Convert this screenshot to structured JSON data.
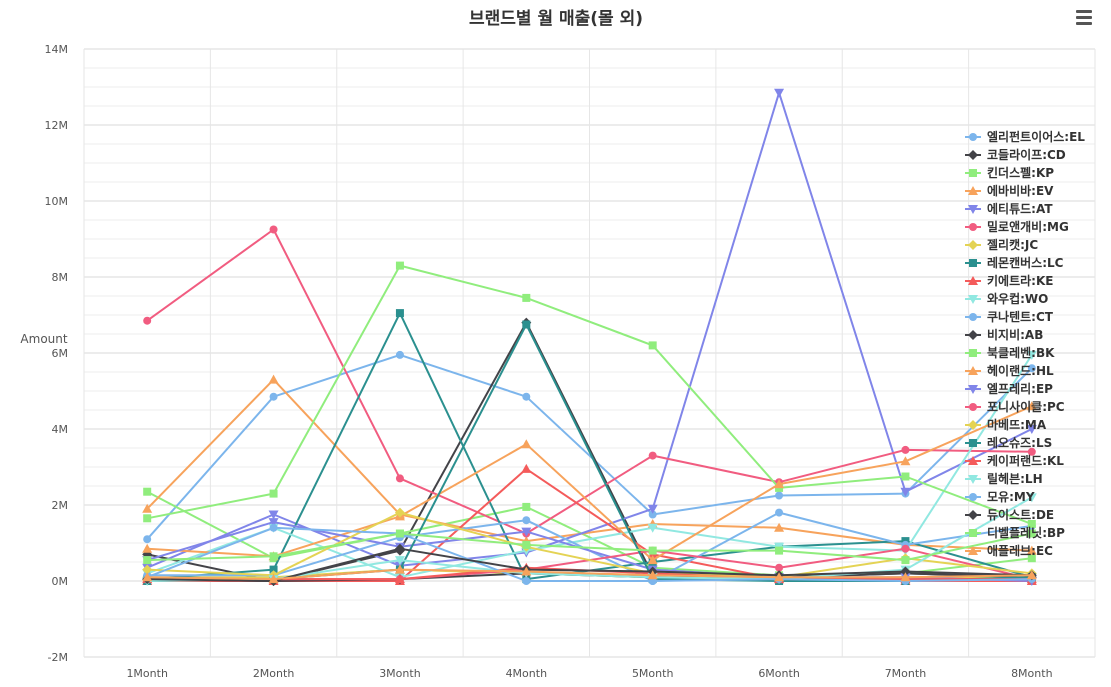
{
  "chart_data": {
    "type": "line",
    "title": "브랜드별 월 매출(몰 외)",
    "xlabel": "",
    "ylabel": "Amount",
    "categories": [
      "1Month",
      "2Month",
      "3Month",
      "4Month",
      "5Month",
      "6Month",
      "7Month",
      "8Month"
    ],
    "ylim": [
      -2000000,
      14000000
    ],
    "yticks": [
      -2000000,
      0,
      2000000,
      4000000,
      6000000,
      8000000,
      10000000,
      12000000,
      14000000
    ],
    "ytick_labels": [
      "-2M",
      "0M",
      "2M",
      "4M",
      "6M",
      "8M",
      "10M",
      "12M",
      "14M"
    ],
    "grid": true,
    "legend_position": "right",
    "series": [
      {
        "name": "엘리펀트이어스:EL",
        "color": "#7cb5ec",
        "marker": "circle",
        "values": [
          1100000,
          4850000,
          5950000,
          4850000,
          1750000,
          2250000,
          2300000,
          5600000
        ]
      },
      {
        "name": "코들라이프:CD",
        "color": "#434348",
        "marker": "diamond",
        "values": [
          700000,
          0,
          800000,
          6800000,
          150000,
          100000,
          200000,
          100000
        ]
      },
      {
        "name": "킨더스펠:KP",
        "color": "#90ed7d",
        "marker": "square",
        "values": [
          2350000,
          600000,
          1250000,
          1950000,
          350000,
          150000,
          200000,
          600000
        ]
      },
      {
        "name": "에바비바:EV",
        "color": "#f7a35c",
        "marker": "triangle",
        "values": [
          1900000,
          5300000,
          1750000,
          1050000,
          1500000,
          1400000,
          950000,
          800000
        ]
      },
      {
        "name": "에티튜드:AT",
        "color": "#8085e9",
        "marker": "triangle-down",
        "values": [
          350000,
          1750000,
          400000,
          750000,
          1900000,
          12850000,
          2350000,
          4000000
        ]
      },
      {
        "name": "밀로앤개비:MG",
        "color": "#f15c80",
        "marker": "circle",
        "values": [
          6850000,
          9250000,
          2700000,
          1250000,
          3300000,
          2600000,
          3450000,
          3400000
        ]
      },
      {
        "name": "젤리캣:JC",
        "color": "#e4d354",
        "marker": "diamond",
        "values": [
          100000,
          100000,
          300000,
          200000,
          100000,
          50000,
          100000,
          100000
        ]
      },
      {
        "name": "레몬캔버스:LC",
        "color": "#2b908f",
        "marker": "square",
        "values": [
          50000,
          300000,
          7050000,
          50000,
          500000,
          900000,
          1050000,
          100000
        ]
      },
      {
        "name": "키에트라:KE",
        "color": "#f45b5b",
        "marker": "triangle",
        "values": [
          0,
          0,
          0,
          2950000,
          700000,
          50000,
          0,
          0
        ]
      },
      {
        "name": "와우컵:WO",
        "color": "#91e8e1",
        "marker": "triangle-down",
        "values": [
          200000,
          1400000,
          100000,
          800000,
          1400000,
          900000,
          800000,
          5950000
        ]
      },
      {
        "name": "쿠나텐트:CT",
        "color": "#7cb5ec",
        "marker": "circle",
        "values": [
          150000,
          150000,
          1150000,
          1600000,
          0,
          1800000,
          950000,
          1450000
        ]
      },
      {
        "name": "비지비:AB",
        "color": "#434348",
        "marker": "diamond",
        "values": [
          50000,
          0,
          50000,
          200000,
          100000,
          100000,
          200000,
          100000
        ]
      },
      {
        "name": "북클레벤:BK",
        "color": "#90ed7d",
        "marker": "square",
        "values": [
          1650000,
          2300000,
          8300000,
          7450000,
          6200000,
          2450000,
          2750000,
          1500000
        ]
      },
      {
        "name": "헤이랜드:HL",
        "color": "#f7a35c",
        "marker": "triangle",
        "values": [
          850000,
          650000,
          1700000,
          3600000,
          550000,
          2550000,
          3150000,
          4600000
        ]
      },
      {
        "name": "엘프레리:EP",
        "color": "#8085e9",
        "marker": "triangle-down",
        "values": [
          550000,
          1550000,
          900000,
          1300000,
          300000,
          100000,
          100000,
          0
        ]
      },
      {
        "name": "포니사이클:PC",
        "color": "#f15c80",
        "marker": "circle",
        "values": [
          50000,
          50000,
          50000,
          300000,
          800000,
          350000,
          850000,
          50000
        ]
      },
      {
        "name": "마베뜨:MA",
        "color": "#e4d354",
        "marker": "diamond",
        "values": [
          300000,
          150000,
          1800000,
          900000,
          200000,
          100000,
          600000,
          200000
        ]
      },
      {
        "name": "레오슈즈:LS",
        "color": "#2b908f",
        "marker": "square",
        "values": [
          0,
          50000,
          300000,
          6750000,
          50000,
          0,
          0,
          100000
        ]
      },
      {
        "name": "케이퍼랜드:KL",
        "color": "#f45b5b",
        "marker": "triangle",
        "values": [
          50000,
          50000,
          50000,
          350000,
          200000,
          50000,
          50000,
          50000
        ]
      },
      {
        "name": "릴헤븐:LH",
        "color": "#91e8e1",
        "marker": "triangle-down",
        "values": [
          0,
          50000,
          550000,
          200000,
          100000,
          50000,
          300000,
          2200000
        ]
      },
      {
        "name": "모유:MY",
        "color": "#7cb5ec",
        "marker": "circle",
        "values": [
          100000,
          1400000,
          1250000,
          0,
          0,
          50000,
          0,
          50000
        ]
      },
      {
        "name": "듀이스트:DE",
        "color": "#434348",
        "marker": "diamond",
        "values": [
          50000,
          0,
          850000,
          300000,
          250000,
          150000,
          250000,
          150000
        ]
      },
      {
        "name": "디벨플레닛:BP",
        "color": "#90ed7d",
        "marker": "square",
        "values": [
          550000,
          650000,
          1250000,
          950000,
          800000,
          800000,
          550000,
          1250000
        ]
      },
      {
        "name": "애플레브:EC",
        "color": "#f7a35c",
        "marker": "triangle",
        "values": [
          100000,
          50000,
          300000,
          250000,
          150000,
          100000,
          100000,
          150000
        ]
      }
    ]
  }
}
